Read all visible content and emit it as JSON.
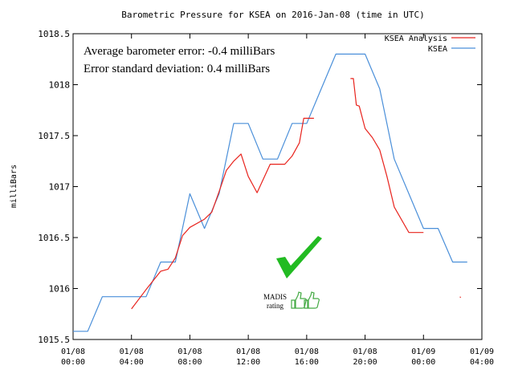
{
  "chart_data": {
    "type": "line",
    "title": "Barometric Pressure for KSEA on 2016-Jan-08 (time in UTC)",
    "xlabel": "",
    "ylabel": "milliBars",
    "xlim": [
      0,
      28
    ],
    "ylim": [
      1015.5,
      1018.5
    ],
    "grid": false,
    "legend_position": "top-right",
    "y_ticks": [
      {
        "value": 1015.5,
        "label": "1015.5"
      },
      {
        "value": 1016,
        "label": "1016"
      },
      {
        "value": 1016.5,
        "label": "1016.5"
      },
      {
        "value": 1017,
        "label": "1017"
      },
      {
        "value": 1017.5,
        "label": "1017.5"
      },
      {
        "value": 1018,
        "label": "1018"
      },
      {
        "value": 1018.5,
        "label": "1018.5"
      }
    ],
    "x_ticks": [
      {
        "value": 0,
        "label": [
          "01/08",
          "00:00"
        ]
      },
      {
        "value": 4,
        "label": [
          "01/08",
          "04:00"
        ]
      },
      {
        "value": 8,
        "label": [
          "01/08",
          "08:00"
        ]
      },
      {
        "value": 12,
        "label": [
          "01/08",
          "12:00"
        ]
      },
      {
        "value": 16,
        "label": [
          "01/08",
          "16:00"
        ]
      },
      {
        "value": 20,
        "label": [
          "01/08",
          "20:00"
        ]
      },
      {
        "value": 24,
        "label": [
          "01/09",
          "00:00"
        ]
      },
      {
        "value": 28,
        "label": [
          "01/09",
          "04:00"
        ]
      }
    ],
    "series": [
      {
        "name": "KSEA Analysis",
        "color": "#e8231d",
        "segments": [
          [
            [
              4.0,
              1015.8
            ],
            [
              5.0,
              1015.99
            ],
            [
              6.0,
              1016.17
            ],
            [
              6.5,
              1016.19
            ],
            [
              7.0,
              1016.3
            ],
            [
              7.5,
              1016.52
            ],
            [
              8.0,
              1016.6
            ],
            [
              9.0,
              1016.68
            ],
            [
              9.5,
              1016.75
            ],
            [
              10.0,
              1016.95
            ],
            [
              10.5,
              1017.16
            ],
            [
              11.0,
              1017.25
            ],
            [
              11.5,
              1017.32
            ],
            [
              12.0,
              1017.1
            ],
            [
              12.6,
              1016.94
            ],
            [
              13.5,
              1017.22
            ],
            [
              14.0,
              1017.22
            ],
            [
              14.5,
              1017.22
            ],
            [
              15.0,
              1017.3
            ],
            [
              15.5,
              1017.43
            ],
            [
              15.8,
              1017.67
            ],
            [
              16.5,
              1017.67
            ]
          ],
          [
            [
              19.0,
              1018.06
            ],
            [
              19.2,
              1018.06
            ],
            [
              19.4,
              1017.8
            ],
            [
              19.6,
              1017.79
            ],
            [
              20.0,
              1017.57
            ],
            [
              20.5,
              1017.48
            ],
            [
              21.0,
              1017.36
            ],
            [
              21.5,
              1017.1
            ],
            [
              22.0,
              1016.8
            ],
            [
              23.0,
              1016.55
            ],
            [
              24.0,
              1016.55
            ]
          ],
          [
            [
              26.5,
              1015.92
            ],
            [
              26.55,
              1015.91
            ]
          ]
        ]
      },
      {
        "name": "KSEA",
        "color": "#4a8fd9",
        "segments": [
          [
            [
              0.0,
              1015.58
            ],
            [
              1.0,
              1015.58
            ],
            [
              2.0,
              1015.92
            ],
            [
              3.0,
              1015.92
            ],
            [
              4.0,
              1015.92
            ],
            [
              5.0,
              1015.92
            ],
            [
              6.0,
              1016.26
            ],
            [
              6.5,
              1016.26
            ],
            [
              7.0,
              1016.26
            ],
            [
              8.0,
              1016.93
            ],
            [
              9.0,
              1016.59
            ],
            [
              10.0,
              1016.93
            ],
            [
              11.0,
              1017.62
            ],
            [
              12.0,
              1017.62
            ],
            [
              13.0,
              1017.27
            ],
            [
              14.0,
              1017.27
            ],
            [
              15.0,
              1017.62
            ],
            [
              16.0,
              1017.62
            ],
            [
              17.0,
              1017.96
            ],
            [
              18.0,
              1018.3
            ],
            [
              19.0,
              1018.3
            ],
            [
              20.0,
              1018.3
            ],
            [
              21.0,
              1017.96
            ],
            [
              22.0,
              1017.27
            ],
            [
              23.0,
              1016.93
            ],
            [
              24.0,
              1016.59
            ],
            [
              25.0,
              1016.59
            ],
            [
              26.0,
              1016.26
            ],
            [
              27.0,
              1016.26
            ]
          ]
        ]
      }
    ],
    "annotations": [
      "Average barometer error: -0.4 milliBars",
      "Error standard deviation:  0.4 milliBars"
    ]
  },
  "badge": {
    "line1": "MADIS",
    "line2": "rating",
    "check_color": "#22bb22",
    "thumbs_color": "#44aa44",
    "icons": [
      "check-mark",
      "thumbs-up",
      "thumbs-up"
    ]
  }
}
